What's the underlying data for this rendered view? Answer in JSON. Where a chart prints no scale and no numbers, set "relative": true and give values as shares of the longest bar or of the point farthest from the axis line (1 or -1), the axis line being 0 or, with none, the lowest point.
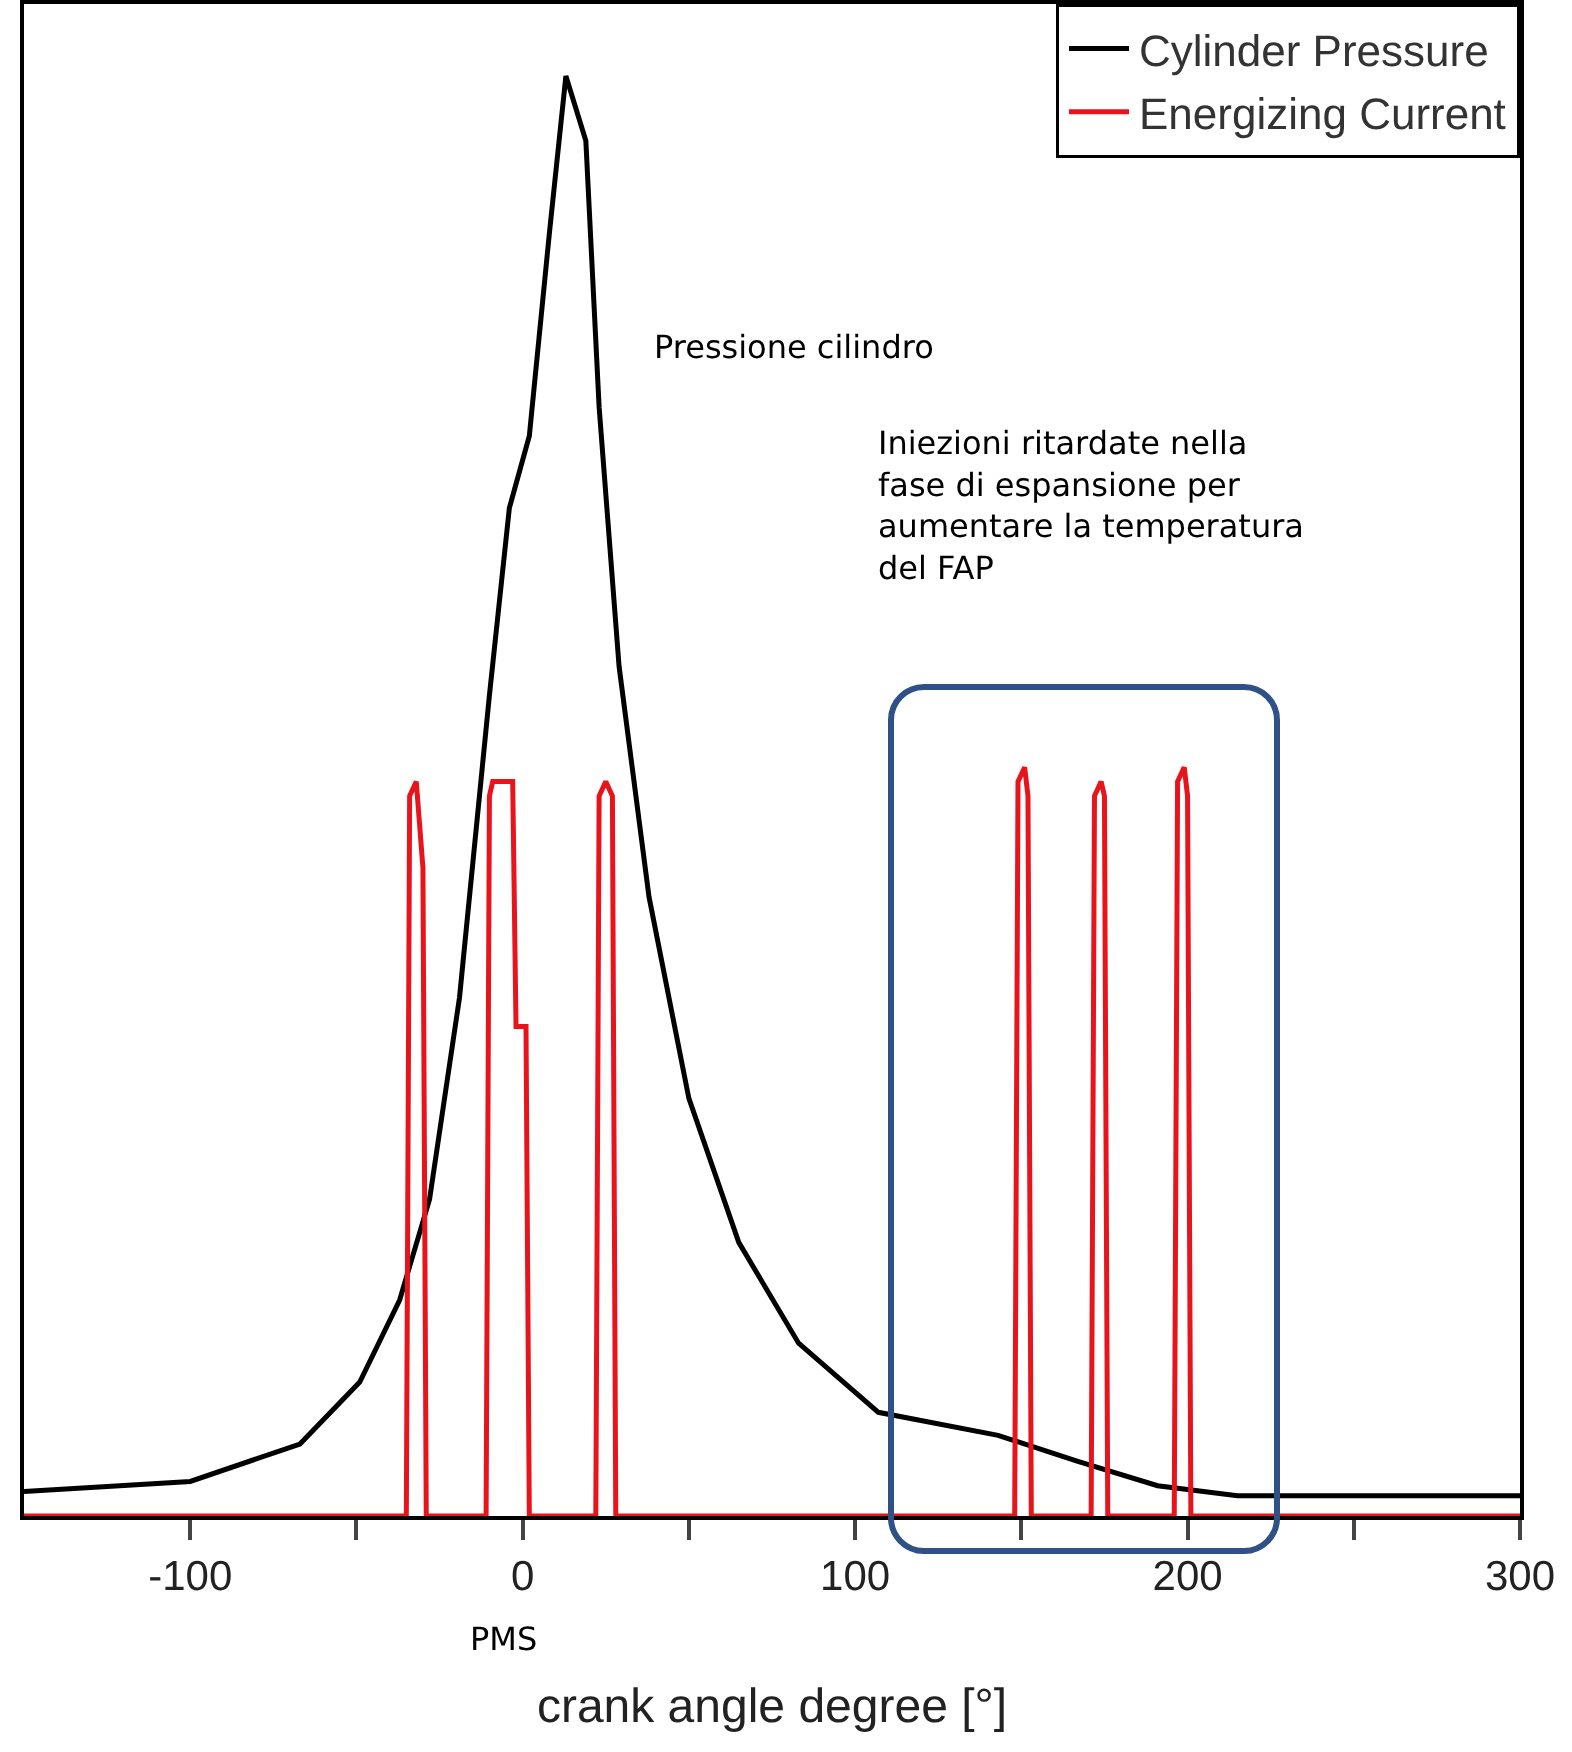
{
  "chart_data": {
    "type": "line",
    "relative": true,
    "xlabel": "crank angle degree [°]",
    "xlim": [
      -150,
      300
    ],
    "xticks": [
      -100,
      {
        "value": -50,
        "label": null
      },
      0,
      {
        "value": 50,
        "label": null
      },
      100,
      {
        "value": 150,
        "label": null
      },
      200,
      {
        "value": 250,
        "label": null
      },
      300
    ],
    "legend": "top right",
    "grid": false,
    "marker": "none",
    "line_style": "solid",
    "series": [
      {
        "name": "Cylinder Pressure",
        "color": "#000000",
        "x": [
          -150,
          -100,
          -67,
          -49,
          -37,
          -28,
          -19,
          -10,
          -4,
          2,
          8,
          13,
          19,
          23,
          29,
          38,
          50,
          65,
          83,
          107,
          143,
          167,
          191,
          215,
          300
        ],
        "values": [
          0.017,
          0.024,
          0.05,
          0.093,
          0.15,
          0.22,
          0.36,
          0.57,
          0.7,
          0.75,
          0.89,
          1.0,
          0.955,
          0.77,
          0.59,
          0.43,
          0.29,
          0.19,
          0.12,
          0.072,
          0.056,
          0.038,
          0.021,
          0.014,
          0.014
        ]
      },
      {
        "name": "Energizing Current",
        "color": "#e8141c",
        "x": [
          -150,
          -35,
          -34,
          -32,
          -30,
          -29,
          -11,
          -10,
          -9,
          -3,
          -2,
          1,
          2,
          22,
          23,
          25,
          27,
          28,
          148,
          149,
          151,
          152,
          153,
          171,
          172,
          174,
          175,
          176,
          196,
          197,
          199,
          200,
          201,
          300
        ],
        "values": [
          0,
          0,
          0.5,
          0.51,
          0.45,
          0,
          0,
          0.5,
          0.51,
          0.51,
          0.34,
          0.34,
          0,
          0,
          0.5,
          0.51,
          0.5,
          0,
          0,
          0.51,
          0.52,
          0.5,
          0,
          0,
          0.5,
          0.51,
          0.5,
          0,
          0,
          0.51,
          0.52,
          0.5,
          0,
          0
        ]
      }
    ],
    "annotations": [
      "Pressione cilindro",
      "Iniezioni ritardate nella fase di espansione per aumentare la temperatura del FAP",
      "PMS"
    ]
  }
}
